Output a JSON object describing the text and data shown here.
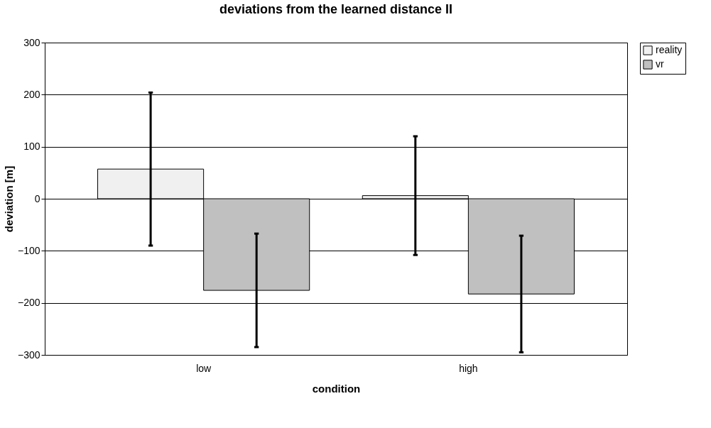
{
  "chart_data": {
    "type": "bar",
    "title": "deviations from the learned distance II",
    "xlabel": "condition",
    "ylabel": "deviation [m]",
    "categories": [
      "low",
      "high"
    ],
    "series": [
      {
        "name": "reality",
        "color": "#f0f0f0",
        "values": [
          57,
          6
        ],
        "errors": [
          147,
          114
        ]
      },
      {
        "name": "vr",
        "color": "#c0c0c0",
        "values": [
          -176,
          -183
        ],
        "errors": [
          109,
          112
        ]
      }
    ],
    "ylim": [
      -300,
      300
    ],
    "yticks": [
      -300,
      -200,
      -100,
      0,
      100,
      200,
      300
    ],
    "grid": "y",
    "legend": "right"
  }
}
